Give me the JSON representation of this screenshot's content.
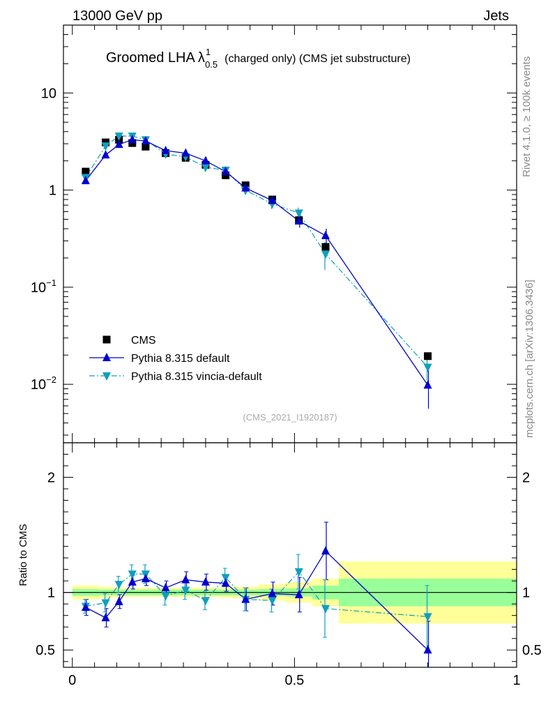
{
  "header": {
    "left": "13000 GeV pp",
    "right": "Jets"
  },
  "title": {
    "main": "Groomed LHA",
    "lambda": "λ",
    "sup": "1",
    "sub": "0.5",
    "rest": "(charged only) (CMS jet substructure)"
  },
  "side": {
    "rivet": "Rivet 4.1.0, ≥ 100k events",
    "mcplots": "mcplots.cern.ch [arXiv:1306.3436]"
  },
  "analysis_tag": "(CMS_2021_I1920187)",
  "ratio_ylabel": "Ratio to CMS",
  "chart_data": {
    "type": "scatter",
    "main_panel": {
      "yscale": "log",
      "ylim": [
        0.0025,
        50
      ],
      "xlim": [
        -0.02,
        1.0
      ],
      "yticks": [
        {
          "value": 10,
          "base": "10",
          "exp": ""
        },
        {
          "value": 1,
          "base": "1",
          "exp": ""
        },
        {
          "value": 0.1,
          "base": "10",
          "exp": "−1"
        },
        {
          "value": 0.01,
          "base": "10",
          "exp": "−2"
        }
      ]
    },
    "ratio_panel": {
      "ylim": [
        0.35,
        2.3
      ],
      "yticks": [
        {
          "value": 0.5,
          "label": "0.5"
        },
        {
          "value": 1,
          "label": "1"
        },
        {
          "value": 2,
          "label": "2"
        }
      ]
    },
    "xticks": [
      {
        "value": 0,
        "label": "0"
      },
      {
        "value": 0.5,
        "label": "0.5"
      },
      {
        "value": 1,
        "label": "1"
      }
    ],
    "bin_edges": [
      0,
      0.06,
      0.09,
      0.12,
      0.15,
      0.18,
      0.24,
      0.27,
      0.33,
      0.36,
      0.42,
      0.48,
      0.54,
      0.6,
      1.0
    ],
    "x": [
      0.03,
      0.075,
      0.105,
      0.135,
      0.165,
      0.21,
      0.255,
      0.3,
      0.345,
      0.39,
      0.45,
      0.51,
      0.57,
      0.8
    ],
    "cms_band_inner": [
      0.03,
      0.025,
      0.025,
      0.025,
      0.025,
      0.025,
      0.025,
      0.025,
      0.025,
      0.025,
      0.03,
      0.035,
      0.06,
      0.12
    ],
    "cms_band_outer": [
      0.06,
      0.05,
      0.045,
      0.04,
      0.04,
      0.04,
      0.04,
      0.04,
      0.045,
      0.05,
      0.07,
      0.09,
      0.12,
      0.27
    ],
    "legend": [
      {
        "name": "CMS",
        "marker": "square",
        "color": "#000000"
      },
      {
        "name": "Pythia 8.315 default",
        "marker": "triangle-up",
        "color": "#0000cc"
      },
      {
        "name": "Pythia 8.315 vincia-default",
        "marker": "triangle-down",
        "color": "#0f9fbf"
      }
    ],
    "series": [
      {
        "name": "CMS",
        "values": [
          1.55,
          3.1,
          3.3,
          3.05,
          2.8,
          2.4,
          2.15,
          1.82,
          1.42,
          1.12,
          0.8,
          0.49,
          0.26,
          0.0195
        ],
        "ratio": [
          1,
          1,
          1,
          1,
          1,
          1,
          1,
          1,
          1,
          1,
          1,
          1,
          1,
          1
        ]
      },
      {
        "name": "Pythia 8.315 default",
        "values": [
          1.25,
          2.3,
          2.95,
          3.3,
          3.2,
          2.55,
          2.4,
          2.0,
          1.55,
          1.05,
          0.78,
          0.48,
          0.34,
          0.0098
        ],
        "errors": [
          0.1,
          0.15,
          0.18,
          0.2,
          0.2,
          0.18,
          0.2,
          0.18,
          0.15,
          0.12,
          0.08,
          0.07,
          0.06,
          0.0042
        ],
        "ratio": [
          0.87,
          0.78,
          0.92,
          1.09,
          1.12,
          1.04,
          1.11,
          1.09,
          1.08,
          0.94,
          0.99,
          0.98,
          1.36,
          0.5
        ],
        "ratio_err": [
          0.07,
          0.08,
          0.06,
          0.06,
          0.06,
          0.06,
          0.07,
          0.07,
          0.07,
          0.1,
          0.1,
          0.15,
          0.25,
          0.25
        ]
      },
      {
        "name": "Pythia 8.315 vincia-default",
        "values": [
          1.35,
          2.85,
          3.6,
          3.6,
          3.3,
          2.35,
          2.2,
          1.72,
          1.6,
          1.0,
          0.72,
          0.58,
          0.22,
          0.015
        ],
        "errors": [
          0.1,
          0.15,
          0.2,
          0.2,
          0.2,
          0.18,
          0.2,
          0.16,
          0.15,
          0.1,
          0.08,
          0.08,
          0.07,
          0.004
        ],
        "ratio": [
          0.88,
          0.91,
          1.07,
          1.16,
          1.16,
          0.97,
          1.02,
          0.93,
          1.13,
          0.94,
          0.93,
          1.18,
          0.86,
          0.79
        ],
        "ratio_err": [
          0.06,
          0.08,
          0.07,
          0.08,
          0.08,
          0.08,
          0.08,
          0.08,
          0.08,
          0.1,
          0.1,
          0.15,
          0.25,
          0.27
        ]
      }
    ]
  }
}
